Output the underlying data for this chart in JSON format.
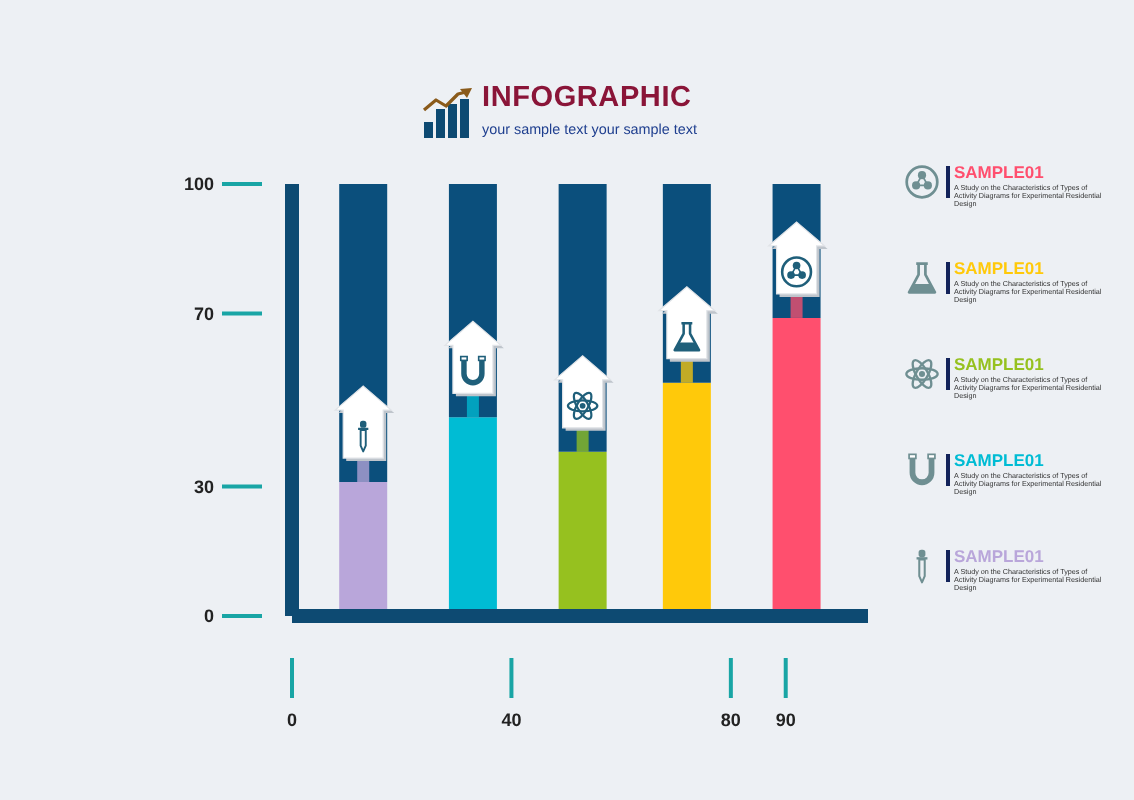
{
  "chart_data": {
    "type": "bar",
    "title": "INFOGRAPHIC",
    "subtitle": "your sample text your sample text",
    "x": [
      13,
      33,
      53,
      72,
      92
    ],
    "xlim": [
      0,
      105
    ],
    "xticks": [
      0,
      40,
      80,
      90
    ],
    "ylim": [
      0,
      100
    ],
    "yticks": [
      0,
      30,
      70,
      100
    ],
    "stacked": true,
    "legend": "right",
    "series": [
      {
        "name": "SAMPLE01",
        "color": "#ff4f6e",
        "values": [
          null,
          null,
          null,
          null,
          69
        ]
      },
      {
        "name": "SAMPLE01",
        "color": "#ffc90a",
        "values": [
          null,
          null,
          null,
          54,
          null
        ]
      },
      {
        "name": "SAMPLE01",
        "color": "#96c11f",
        "values": [
          null,
          null,
          38,
          null,
          null
        ]
      },
      {
        "name": "SAMPLE01",
        "color": "#00bcd4",
        "values": [
          null,
          46,
          null,
          null,
          null
        ]
      },
      {
        "name": "SAMPLE01",
        "color": "#b9a6da",
        "values": [
          31,
          null,
          null,
          null,
          null
        ]
      },
      {
        "color": "#0b4f7c",
        "values": [
          69,
          54,
          62,
          46,
          31
        ]
      }
    ],
    "annotations": [
      "A Study on the Characteristics of Types of Activity Diagrams for Experimental Residential Design",
      "A Study on the Characteristics of Types of Activity Diagrams for Experimental Residential Design",
      "A Study on the Characteristics of Types of Activity Diagrams for Experimental Residential Design",
      "A Study on the Characteristics of Types of Activity Diagrams for Experimental Residential Design",
      "A Study on the Characteristics of Types of Activity Diagrams for Experimental Residential Design"
    ]
  }
}
